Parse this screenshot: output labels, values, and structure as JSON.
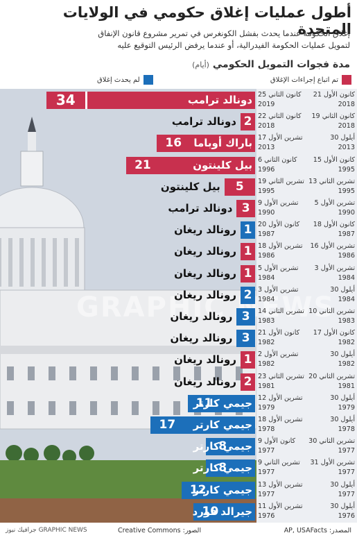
{
  "header": {
    "title": "أطول عمليات إغلاق حكومي في الولايات المتحدة",
    "subtitle_line1": "إغلاق الحكومة عندما يحدث بفشل الكونغرس في تمرير مشروع قانون الإنفاق",
    "subtitle_line2": "لتمويل عمليات الحكومة الفيدرالية، أو عندما يرفض الرئيس التوقيع عليه",
    "axis_title": "مدة فجوات التمويل الحكومي",
    "axis_unit": "(أيام)"
  },
  "legend": {
    "red_label": "تم اتباع إجراءات الإغلاق",
    "blue_label": "لم يحدث إغلاق",
    "red_color": "#c8304e",
    "blue_color": "#1c6fba"
  },
  "chart_data": {
    "type": "bar",
    "orientation": "horizontal",
    "rows": [
      {
        "start": "21 كانون الأول 2018",
        "start_day": "21 كانون الأول",
        "start_year": "2018",
        "end_day": "25 كانون الثاني",
        "end_year": "2019",
        "president": "دونالد ترامب",
        "days": 34,
        "shutdown": true
      },
      {
        "start": "19 كانون الثاني 2018",
        "start_day": "19 كانون الثاني",
        "start_year": "2018",
        "end_day": "22 كانون الثاني",
        "end_year": "2018",
        "president": "دونالد ترامب",
        "days": 2,
        "shutdown": true
      },
      {
        "start": "30 أيلول 2013",
        "start_day": "30 أيلول",
        "start_year": "2013",
        "end_day": "17 تشرين الأول",
        "end_year": "2013",
        "president": "باراك أوباما",
        "days": 16,
        "shutdown": true
      },
      {
        "start": "15 كانون الأول 1995",
        "start_day": "15 كانون الأول",
        "start_year": "1995",
        "end_day": "6 كانون الثاني",
        "end_year": "1996",
        "president": "بيل كلينتون",
        "days": 21,
        "shutdown": true
      },
      {
        "start": "13 تشرين الثاني 1995",
        "start_day": "13 تشرين الثاني",
        "start_year": "1995",
        "end_day": "19 تشرين الثاني",
        "end_year": "1995",
        "president": "بيل كلينتون",
        "days": 5,
        "shutdown": true
      },
      {
        "start": "5 تشرين الأول 1990",
        "start_day": "5 تشرين الأول",
        "start_year": "1990",
        "end_day": "9 تشرين الأول",
        "end_year": "1990",
        "president": "دونالد ترامب",
        "days": 3,
        "shutdown": true
      },
      {
        "start": "18 كانون الأول 1987",
        "start_day": "18 كانون الأول",
        "start_year": "1987",
        "end_day": "20 كانون الأول",
        "end_year": "1987",
        "president": "رونالد ريغان",
        "days": 1,
        "shutdown": false
      },
      {
        "start": "16 تشرين الأول 1986",
        "start_day": "16 تشرين الأول",
        "start_year": "1986",
        "end_day": "18 تشرين الأول",
        "end_year": "1986",
        "president": "رونالد ريغان",
        "days": 1,
        "shutdown": true
      },
      {
        "start": "3 تشرين الأول 1984",
        "start_day": "3 تشرين الأول",
        "start_year": "1984",
        "end_day": "5 تشرين الأول",
        "end_year": "1984",
        "president": "رونالد ريغان",
        "days": 1,
        "shutdown": true
      },
      {
        "start": "30 أيلول 1984",
        "start_day": "30 أيلول",
        "start_year": "1984",
        "end_day": "3 تشرين الأول",
        "end_year": "1984",
        "president": "رونالد ريغان",
        "days": 2,
        "shutdown": false
      },
      {
        "start": "10 تشرين الثاني 1983",
        "start_day": "10 تشرين الثاني",
        "start_year": "1983",
        "end_day": "14 تشرين الثاني",
        "end_year": "1983",
        "president": "رونالد ريغان",
        "days": 3,
        "shutdown": false
      },
      {
        "start": "17 كانون الأول 1982",
        "start_day": "17 كانون الأول",
        "start_year": "1982",
        "end_day": "21 كانون الأول",
        "end_year": "1982",
        "president": "رونالد ريغان",
        "days": 3,
        "shutdown": false
      },
      {
        "start": "30 أيلول 1982",
        "start_day": "30 أيلول",
        "start_year": "1982",
        "end_day": "2 تشرين الأول",
        "end_year": "1982",
        "president": "رونالد ريغان",
        "days": 1,
        "shutdown": true
      },
      {
        "start": "20 تشرين الثاني 1981",
        "start_day": "20 تشرين الثاني",
        "start_year": "1981",
        "end_day": "23 تشرين الثاني",
        "end_year": "1981",
        "president": "رونالد ريغان",
        "days": 2,
        "shutdown": true
      },
      {
        "start": "30 أيلول 1979",
        "start_day": "30 أيلول",
        "start_year": "1979",
        "end_day": "12 تشرين الأول",
        "end_year": "1979",
        "president": "جيمي كارتر",
        "days": 11,
        "shutdown": false
      },
      {
        "start": "30 أيلول 1978",
        "start_day": "30 أيلول",
        "start_year": "1978",
        "end_day": "18 تشرين الأول",
        "end_year": "1978",
        "president": "جيمي كارتر",
        "days": 17,
        "shutdown": false
      },
      {
        "start": "30 تشرين الثاني 1977",
        "start_day": "30 تشرين الثاني",
        "start_year": "1977",
        "end_day": "9 كانون الأول",
        "end_year": "1977",
        "president": "جيمي كارتر",
        "days": 8,
        "shutdown": false
      },
      {
        "start": "31 تشرين الأول 1977",
        "start_day": "31 تشرين الأول",
        "start_year": "1977",
        "end_day": "9 تشرين الثاني",
        "end_year": "1977",
        "president": "جيمي كارتر",
        "days": 8,
        "shutdown": false
      },
      {
        "start": "30 أيلول 1977",
        "start_day": "30 أيلول",
        "start_year": "1977",
        "end_day": "13 تشرين الأول",
        "end_year": "1977",
        "president": "جيمي كارتر",
        "days": 12,
        "shutdown": false
      },
      {
        "start": "30 أيلول 1976",
        "start_day": "30 أيلول",
        "start_year": "1976",
        "end_day": "11 تشرين الأول",
        "end_year": "1976",
        "president": "جيرالد فورد",
        "days": 10,
        "shutdown": false
      }
    ]
  },
  "footer": {
    "source": "المصدر: AP, USAFacts",
    "credit": "الصور: Creative Commons",
    "brand": "GRAPHIC NEWS جرافيك نيوز"
  },
  "watermark": "GRAPHIC NEWS"
}
